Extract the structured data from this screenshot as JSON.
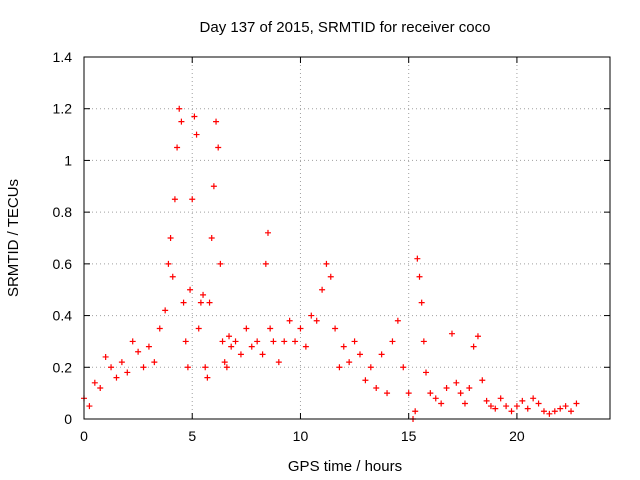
{
  "chart_data": {
    "type": "scatter",
    "title": "Day 137 of 2015, SRMTID for receiver coco",
    "xlabel": "GPS time / hours",
    "ylabel": "SRMTID / TECUs",
    "xlim": [
      0,
      24.3
    ],
    "ylim": [
      0,
      1.4
    ],
    "grid": true,
    "grid_style": "dotted",
    "marker": "plus",
    "x_ticks": [
      0,
      5,
      10,
      15,
      20
    ],
    "x_tick_labels": [
      "0",
      "5",
      "10",
      "15",
      "20"
    ],
    "y_ticks": [
      0,
      0.2,
      0.4,
      0.6,
      0.8,
      1.0,
      1.2,
      1.4
    ],
    "y_tick_labels": [
      "0",
      "0.2",
      "0.4",
      "0.6",
      "0.8",
      "1",
      "1.2",
      "1.4"
    ],
    "series": [
      {
        "name": "SRMTID",
        "color": "#ff0000",
        "x": [
          0.0,
          0.25,
          0.5,
          0.75,
          1.0,
          1.25,
          1.5,
          1.75,
          2.0,
          2.25,
          2.5,
          2.75,
          3.0,
          3.25,
          3.5,
          3.75,
          3.9,
          4.0,
          4.1,
          4.2,
          4.3,
          4.4,
          4.5,
          4.6,
          4.7,
          4.8,
          4.9,
          5.0,
          5.1,
          5.2,
          5.3,
          5.4,
          5.5,
          5.6,
          5.7,
          5.8,
          5.9,
          6.0,
          6.1,
          6.2,
          6.3,
          6.4,
          6.5,
          6.6,
          6.7,
          6.8,
          7.0,
          7.25,
          7.5,
          7.75,
          8.0,
          8.25,
          8.4,
          8.5,
          8.6,
          8.75,
          9.0,
          9.25,
          9.5,
          9.75,
          10.0,
          10.25,
          10.5,
          10.75,
          11.0,
          11.2,
          11.4,
          11.6,
          11.8,
          12.0,
          12.25,
          12.5,
          12.75,
          13.0,
          13.25,
          13.5,
          13.75,
          14.0,
          14.25,
          14.5,
          14.75,
          15.0,
          15.2,
          15.3,
          15.4,
          15.5,
          15.6,
          15.7,
          15.8,
          16.0,
          16.25,
          16.5,
          16.75,
          17.0,
          17.2,
          17.4,
          17.6,
          17.8,
          18.0,
          18.2,
          18.4,
          18.6,
          18.8,
          19.0,
          19.25,
          19.5,
          19.75,
          20.0,
          20.25,
          20.5,
          20.75,
          21.0,
          21.25,
          21.5,
          21.75,
          22.0,
          22.25,
          22.5,
          22.75
        ],
        "y": [
          0.08,
          0.05,
          0.14,
          0.12,
          0.24,
          0.2,
          0.16,
          0.22,
          0.18,
          0.3,
          0.26,
          0.2,
          0.28,
          0.22,
          0.35,
          0.42,
          0.6,
          0.7,
          0.55,
          0.85,
          1.05,
          1.2,
          1.15,
          0.45,
          0.3,
          0.2,
          0.5,
          0.85,
          1.17,
          1.1,
          0.35,
          0.45,
          0.48,
          0.2,
          0.16,
          0.45,
          0.7,
          0.9,
          1.15,
          1.05,
          0.6,
          0.3,
          0.22,
          0.2,
          0.32,
          0.28,
          0.3,
          0.25,
          0.35,
          0.28,
          0.3,
          0.25,
          0.6,
          0.72,
          0.35,
          0.3,
          0.22,
          0.3,
          0.38,
          0.3,
          0.35,
          0.28,
          0.4,
          0.38,
          0.5,
          0.6,
          0.55,
          0.35,
          0.2,
          0.28,
          0.22,
          0.3,
          0.25,
          0.15,
          0.2,
          0.12,
          0.25,
          0.1,
          0.3,
          0.38,
          0.2,
          0.1,
          0.0,
          0.03,
          0.62,
          0.55,
          0.45,
          0.3,
          0.18,
          0.1,
          0.08,
          0.06,
          0.12,
          0.33,
          0.14,
          0.1,
          0.06,
          0.12,
          0.28,
          0.32,
          0.15,
          0.07,
          0.05,
          0.04,
          0.08,
          0.05,
          0.03,
          0.05,
          0.07,
          0.04,
          0.08,
          0.06,
          0.03,
          0.02,
          0.03,
          0.04,
          0.05,
          0.03,
          0.06
        ]
      }
    ]
  }
}
